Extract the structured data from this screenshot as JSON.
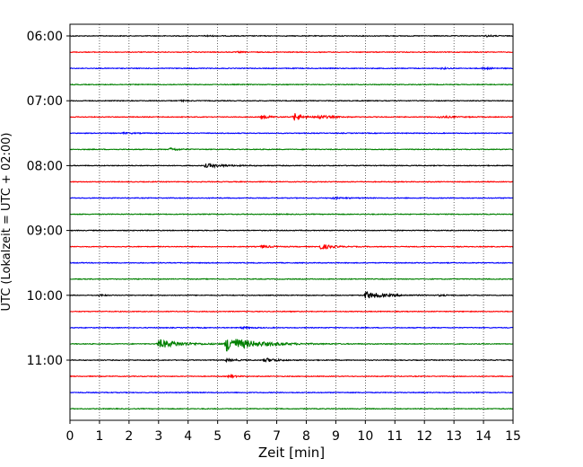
{
  "chart_data": {
    "type": "line",
    "subtype": "helicorder",
    "xlabel": "Zeit  [min]",
    "ylabel": "UTC (Lokalzeit = UTC + 02:00)",
    "xlim": [
      0,
      15
    ],
    "x_ticks": [
      0,
      1,
      2,
      3,
      4,
      5,
      6,
      7,
      8,
      9,
      10,
      11,
      12,
      13,
      14,
      15
    ],
    "y_ticks": [
      "06:00",
      "07:00",
      "08:00",
      "09:00",
      "10:00",
      "11:00"
    ],
    "grid": "vertical dotted at each minute",
    "legend": "none",
    "trace_colors": [
      "#000000",
      "#ff0000",
      "#0000ff",
      "#008000"
    ],
    "trace_interval_minutes": 15,
    "first_trace_start": "06:00",
    "series": [
      {
        "start": "06:00",
        "color": "#000000",
        "events": [
          {
            "t": 4.6,
            "amp": 0.15,
            "dur": 0.6
          },
          {
            "t": 14.1,
            "amp": 0.2,
            "dur": 0.5
          }
        ]
      },
      {
        "start": "06:15",
        "color": "#ff0000",
        "events": [
          {
            "t": 5.7,
            "amp": 0.15,
            "dur": 0.3
          }
        ]
      },
      {
        "start": "06:30",
        "color": "#0000ff",
        "events": [
          {
            "t": 12.6,
            "amp": 0.25,
            "dur": 0.3
          },
          {
            "t": 14.0,
            "amp": 0.25,
            "dur": 0.6
          }
        ]
      },
      {
        "start": "06:45",
        "color": "#008000",
        "events": []
      },
      {
        "start": "07:00",
        "color": "#000000",
        "events": [
          {
            "t": 3.8,
            "amp": 0.2,
            "dur": 0.3
          }
        ]
      },
      {
        "start": "07:15",
        "color": "#ff0000",
        "events": [
          {
            "t": 6.5,
            "amp": 0.45,
            "dur": 0.6
          },
          {
            "t": 7.6,
            "amp": 0.95,
            "dur": 0.6
          },
          {
            "t": 8.4,
            "amp": 0.5,
            "dur": 0.8
          },
          {
            "t": 12.5,
            "amp": 0.25,
            "dur": 1.2
          }
        ]
      },
      {
        "start": "07:30",
        "color": "#0000ff",
        "events": [
          {
            "t": 1.8,
            "amp": 0.15,
            "dur": 0.8
          }
        ]
      },
      {
        "start": "07:45",
        "color": "#008000",
        "events": [
          {
            "t": 3.4,
            "amp": 0.35,
            "dur": 0.6
          }
        ]
      },
      {
        "start": "08:00",
        "color": "#000000",
        "events": [
          {
            "t": 4.6,
            "amp": 0.45,
            "dur": 1.4
          }
        ]
      },
      {
        "start": "08:15",
        "color": "#ff0000",
        "events": []
      },
      {
        "start": "08:30",
        "color": "#0000ff",
        "events": [
          {
            "t": 8.9,
            "amp": 0.2,
            "dur": 0.9
          }
        ]
      },
      {
        "start": "08:45",
        "color": "#008000",
        "events": []
      },
      {
        "start": "09:00",
        "color": "#000000",
        "events": []
      },
      {
        "start": "09:15",
        "color": "#ff0000",
        "events": [
          {
            "t": 6.5,
            "amp": 0.35,
            "dur": 0.7
          },
          {
            "t": 8.5,
            "amp": 0.7,
            "dur": 0.8
          }
        ]
      },
      {
        "start": "09:30",
        "color": "#0000ff",
        "events": []
      },
      {
        "start": "09:45",
        "color": "#008000",
        "events": []
      },
      {
        "start": "10:00",
        "color": "#000000",
        "events": [
          {
            "t": 1.0,
            "amp": 0.2,
            "dur": 0.4
          },
          {
            "t": 10.0,
            "amp": 0.95,
            "dur": 1.3
          },
          {
            "t": 12.5,
            "amp": 0.15,
            "dur": 0.6
          }
        ]
      },
      {
        "start": "10:15",
        "color": "#ff0000",
        "events": []
      },
      {
        "start": "10:30",
        "color": "#0000ff",
        "events": [
          {
            "t": 5.8,
            "amp": 0.2,
            "dur": 0.8
          }
        ]
      },
      {
        "start": "10:45",
        "color": "#008000",
        "events": [
          {
            "t": 3.0,
            "amp": 1.1,
            "dur": 1.6
          },
          {
            "t": 5.3,
            "amp": 1.9,
            "dur": 2.0
          }
        ]
      },
      {
        "start": "11:00",
        "color": "#000000",
        "events": [
          {
            "t": 5.3,
            "amp": 0.3,
            "dur": 0.8
          },
          {
            "t": 6.6,
            "amp": 0.55,
            "dur": 0.8
          }
        ]
      },
      {
        "start": "11:15",
        "color": "#ff0000",
        "events": [
          {
            "t": 5.4,
            "amp": 0.3,
            "dur": 0.5
          }
        ]
      },
      {
        "start": "11:30",
        "color": "#0000ff",
        "events": []
      },
      {
        "start": "11:45",
        "color": "#008000",
        "events": []
      }
    ]
  }
}
